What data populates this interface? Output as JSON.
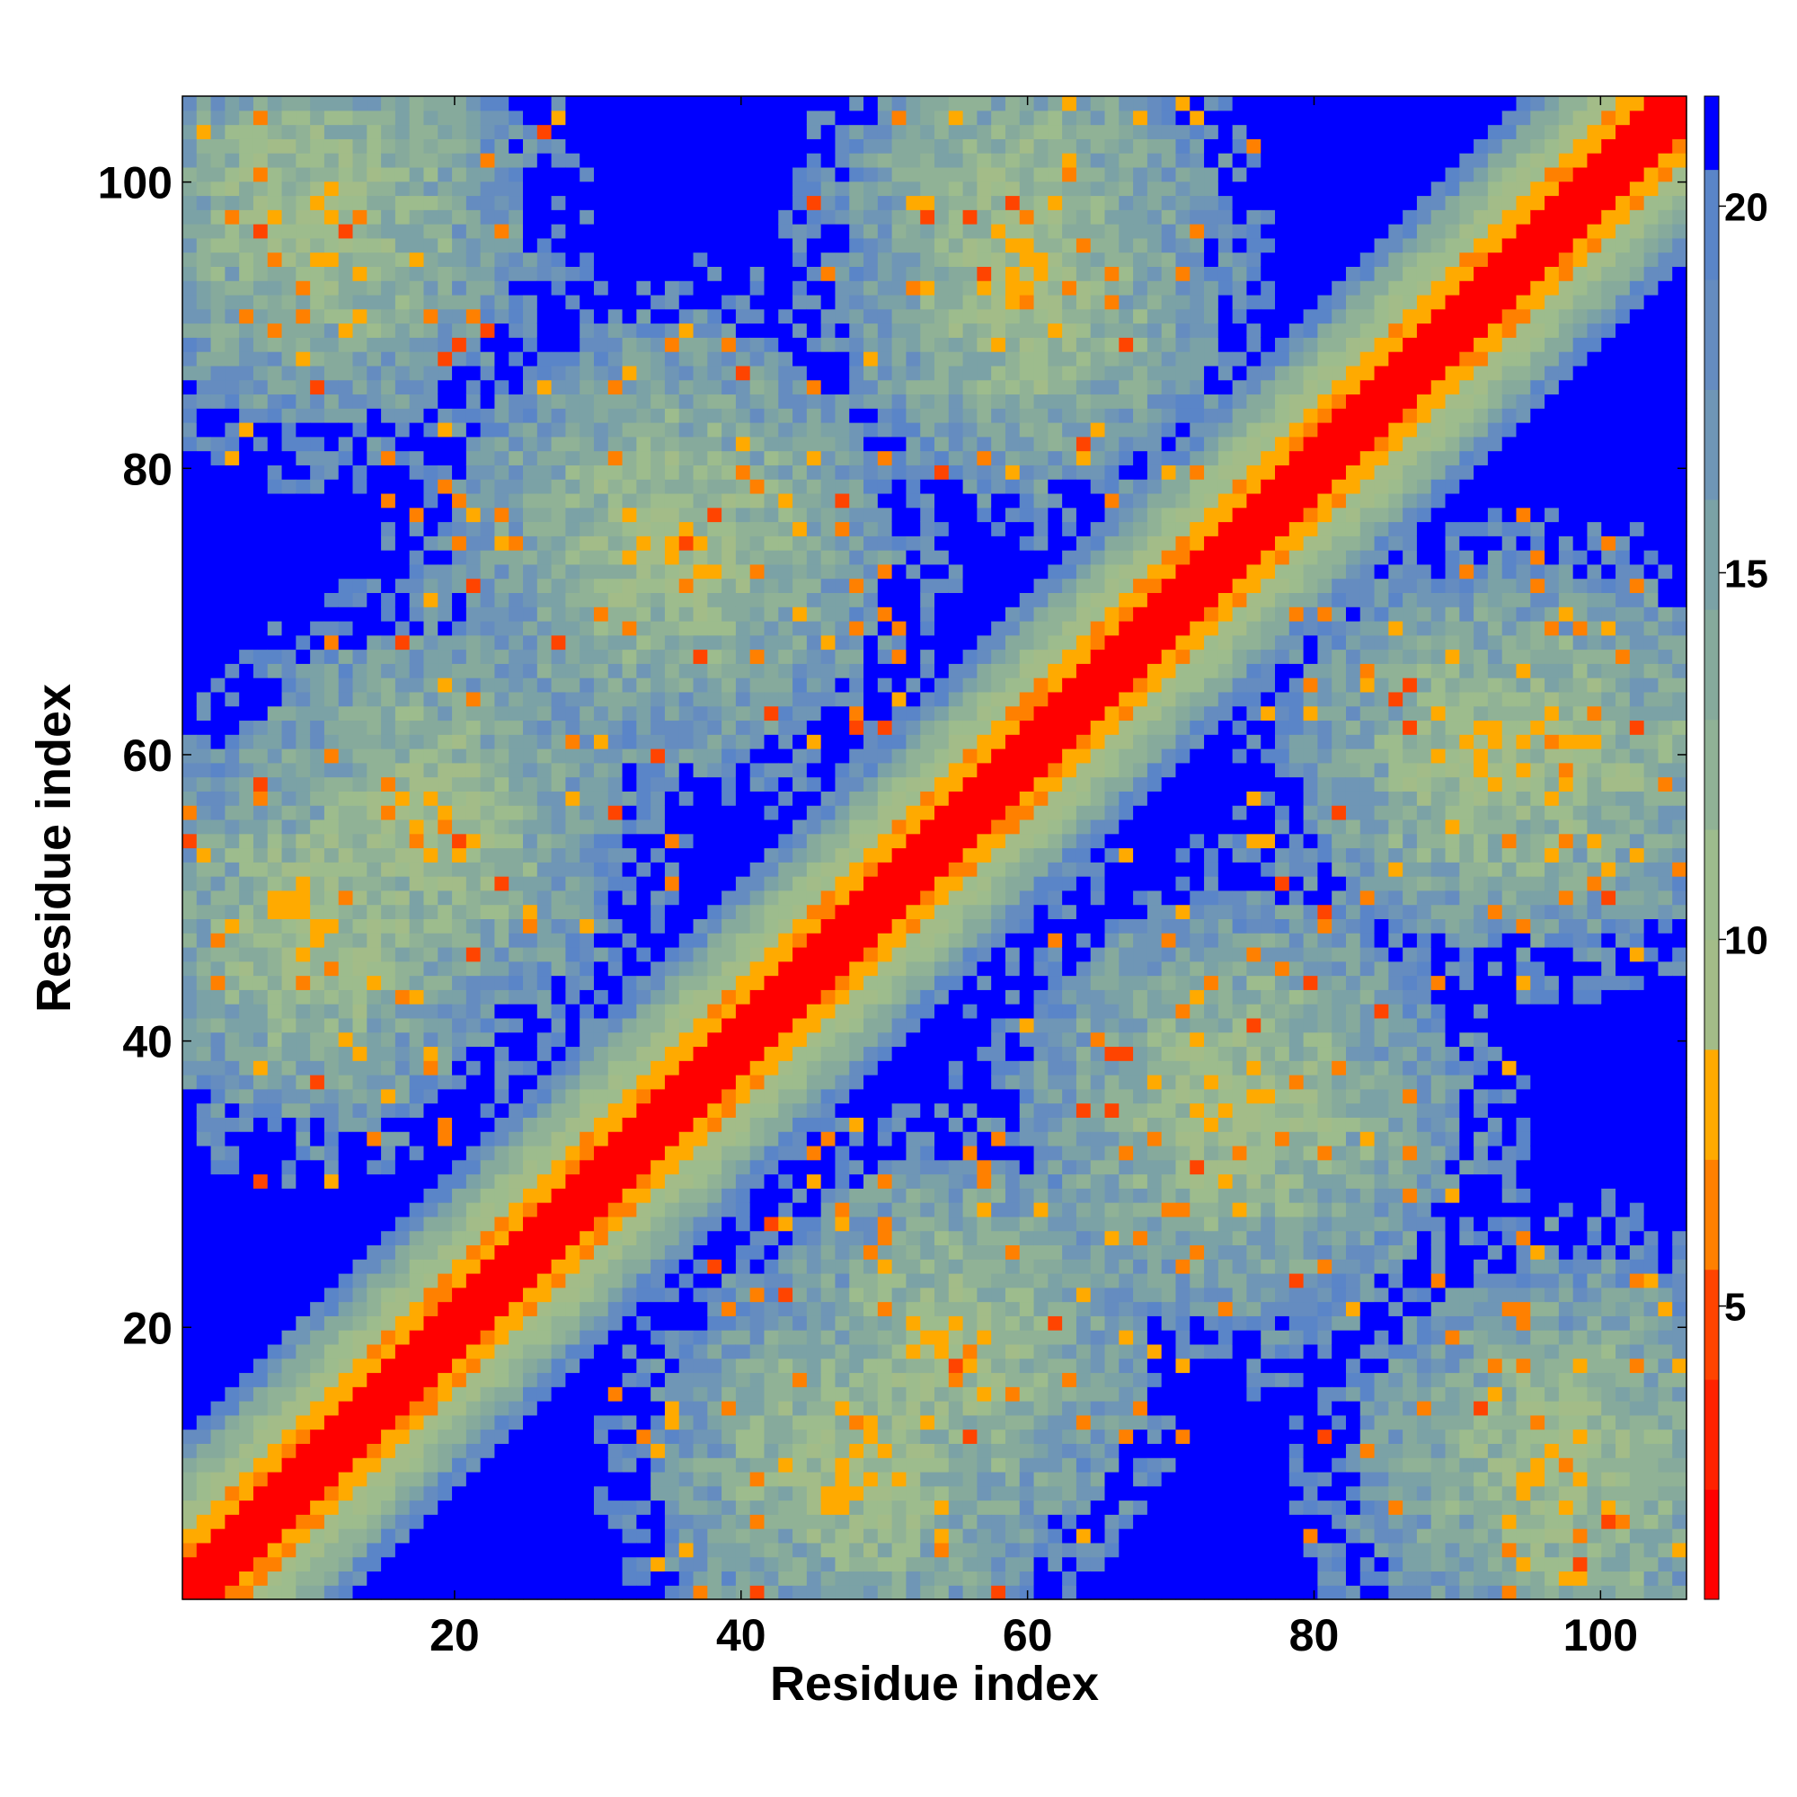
{
  "chart_data": {
    "type": "heatmap",
    "title": "",
    "xlabel": "Residue index",
    "ylabel": "Residue index",
    "n_residues": 106,
    "xlim": [
      1,
      106
    ],
    "ylim": [
      1,
      106
    ],
    "x_ticks": [
      20,
      40,
      60,
      80,
      100
    ],
    "y_ticks": [
      20,
      40,
      60,
      80,
      100
    ],
    "colorbar": {
      "range": [
        1,
        21.5
      ],
      "ticks": [
        5,
        10,
        15,
        20
      ],
      "bands": [
        {
          "from": 1,
          "to": 2.5,
          "color": "#ff0000"
        },
        {
          "from": 2.5,
          "to": 4,
          "color": "#ff2200"
        },
        {
          "from": 4,
          "to": 5.5,
          "color": "#ff4400"
        },
        {
          "from": 5.5,
          "to": 7,
          "color": "#ff8000"
        },
        {
          "from": 7,
          "to": 8.5,
          "color": "#ffaa00"
        },
        {
          "from": 8.5,
          "to": 10,
          "color": "#a3bc88"
        },
        {
          "from": 10,
          "to": 11.5,
          "color": "#9dbc8d"
        },
        {
          "from": 11.5,
          "to": 13,
          "color": "#90b296"
        },
        {
          "from": 13,
          "to": 14.5,
          "color": "#86aa9c"
        },
        {
          "from": 14.5,
          "to": 16,
          "color": "#7ba2a6"
        },
        {
          "from": 16,
          "to": 17.5,
          "color": "#6f96b6"
        },
        {
          "from": 17.5,
          "to": 19,
          "color": "#658cc0"
        },
        {
          "from": 19,
          "to": 20.5,
          "color": "#5a85c8"
        },
        {
          "from": 20.5,
          "to": 21.5,
          "color": "#0000ff"
        }
      ]
    },
    "structure": {
      "description_of_values": "pairwise residue distance matrix (symmetric), values from colorbar scale",
      "diagonal": {
        "value_at_offset_0_to_2": 1.5,
        "value_at_offset_3_to_4": 6.5,
        "band_halfwidth": 11
      },
      "helical_packing_centers": [
        {
          "i": 10,
          "j": 98
        },
        {
          "i": 35,
          "j": 75
        },
        {
          "i": 60,
          "j": 98
        },
        {
          "i": 10,
          "j": 48
        },
        {
          "i": 55,
          "j": 18
        },
        {
          "i": 92,
          "j": 60
        },
        {
          "i": 75,
          "j": 35
        },
        {
          "i": 98,
          "j": 10
        },
        {
          "i": 48,
          "j": 10
        },
        {
          "i": 18,
          "j": 55
        },
        {
          "i": 60,
          "j": 92
        },
        {
          "i": 98,
          "j": 60
        }
      ],
      "far_value": 21.5
    }
  }
}
